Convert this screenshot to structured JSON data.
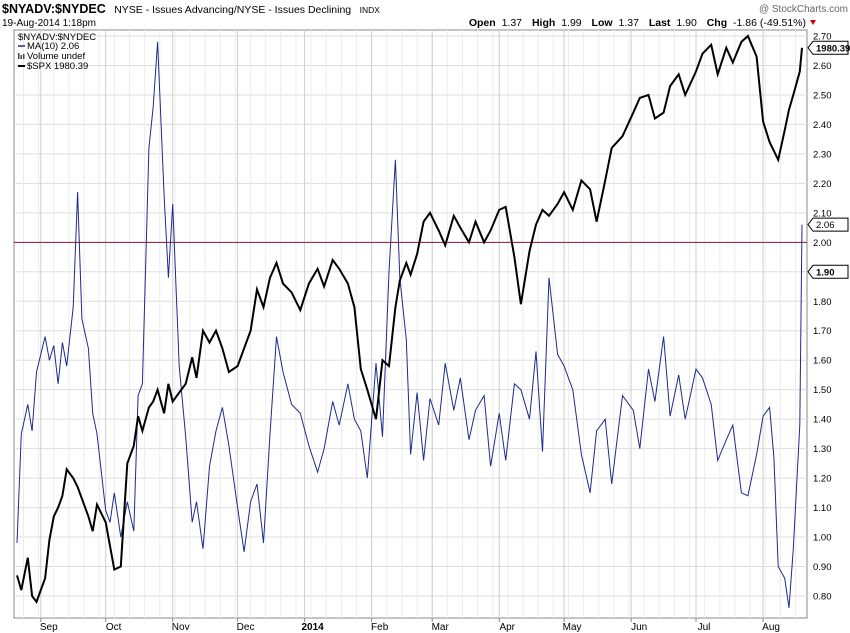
{
  "header": {
    "symbol": "$NYADV:$NYDEC",
    "exchange": "NYSE - Issues Advancing/NYSE - Issues Declining",
    "index_tag": "INDX",
    "watermark": "@ StockCharts.com",
    "timestamp": "19-Aug-2014 1:18pm",
    "quote": {
      "open_label": "Open",
      "open": "1.37",
      "high_label": "High",
      "high": "1.99",
      "low_label": "Low",
      "low": "1.37",
      "last_label": "Last",
      "last": "1.90",
      "chg_label": "Chg",
      "chg": "-1.86 (-49.51%)"
    }
  },
  "legend": {
    "ratio": "$NYADV:$NYDEC",
    "ma": "MA(10) 2.06",
    "volume": "Volume undef",
    "spx": "$SPX 1980.39"
  },
  "tags": {
    "spx_last": "1980.39",
    "ma_last": "2.06",
    "ratio_last": "1.90"
  },
  "colors": {
    "ma_line": "#1f2a8c",
    "spx_line": "#000000",
    "reference_line": "#8b1a3a",
    "grid": "#dddddd",
    "chg_down": "#cc0000"
  },
  "chart_data": {
    "type": "line",
    "title": "$NYADV:$NYDEC",
    "subtitle": "NYSE - Issues Advancing/NYSE - Issues Declining",
    "x_tick_labels": [
      "Sep",
      "Oct",
      "Nov",
      "Dec",
      "2014",
      "Feb",
      "Mar",
      "Apr",
      "May",
      "Jun",
      "Jul",
      "Aug"
    ],
    "y_tick_labels": [
      "0.80",
      "0.90",
      "1.00",
      "1.10",
      "1.20",
      "1.30",
      "1.40",
      "1.50",
      "1.60",
      "1.70",
      "1.80",
      "1.90",
      "2.00",
      "2.10",
      "2.20",
      "2.30",
      "2.40",
      "2.50",
      "2.60",
      "2.70"
    ],
    "ylim": [
      0.75,
      2.72
    ],
    "reference_line": 2.0,
    "grid": true,
    "legend_position": "top-left",
    "x_range": [
      "2013-08-21",
      "2014-08-19"
    ],
    "series": [
      {
        "name": "MA(10)",
        "color": "#1f2a8c",
        "x": [
          "2013-08-21",
          "2013-08-23",
          "2013-08-26",
          "2013-08-28",
          "2013-08-30",
          "2013-09-03",
          "2013-09-05",
          "2013-09-07",
          "2013-09-09",
          "2013-09-11",
          "2013-09-13",
          "2013-09-16",
          "2013-09-18",
          "2013-09-20",
          "2013-09-23",
          "2013-09-25",
          "2013-09-27",
          "2013-10-01",
          "2013-10-03",
          "2013-10-05",
          "2013-10-08",
          "2013-10-11",
          "2013-10-14",
          "2013-10-16",
          "2013-10-18",
          "2013-10-21",
          "2013-10-23",
          "2013-10-25",
          "2013-10-28",
          "2013-10-30",
          "2013-11-01",
          "2013-11-04",
          "2013-11-07",
          "2013-11-10",
          "2013-11-12",
          "2013-11-15",
          "2013-11-18",
          "2013-11-21",
          "2013-11-24",
          "2013-11-27",
          "2013-12-01",
          "2013-12-04",
          "2013-12-07",
          "2013-12-10",
          "2013-12-13",
          "2013-12-16",
          "2013-12-19",
          "2013-12-22",
          "2013-12-26",
          "2013-12-30",
          "2014-01-03",
          "2014-01-07",
          "2014-01-10",
          "2014-01-14",
          "2014-01-17",
          "2014-01-21",
          "2014-01-24",
          "2014-01-27",
          "2014-01-30",
          "2014-02-03",
          "2014-02-06",
          "2014-02-09",
          "2014-02-12",
          "2014-02-14",
          "2014-02-17",
          "2014-02-19",
          "2014-02-22",
          "2014-02-25",
          "2014-02-28",
          "2014-03-04",
          "2014-03-07",
          "2014-03-11",
          "2014-03-14",
          "2014-03-18",
          "2014-03-21",
          "2014-03-25",
          "2014-03-28",
          "2014-04-01",
          "2014-04-04",
          "2014-04-08",
          "2014-04-11",
          "2014-04-15",
          "2014-04-18",
          "2014-04-21",
          "2014-04-24",
          "2014-04-28",
          "2014-05-01",
          "2014-05-05",
          "2014-05-09",
          "2014-05-13",
          "2014-05-16",
          "2014-05-20",
          "2014-05-23",
          "2014-05-28",
          "2014-06-02",
          "2014-06-05",
          "2014-06-09",
          "2014-06-12",
          "2014-06-16",
          "2014-06-19",
          "2014-06-23",
          "2014-06-26",
          "2014-07-01",
          "2014-07-04",
          "2014-07-08",
          "2014-07-11",
          "2014-07-15",
          "2014-07-18",
          "2014-07-22",
          "2014-07-25",
          "2014-07-29",
          "2014-08-01",
          "2014-08-04",
          "2014-08-06",
          "2014-08-08",
          "2014-08-11",
          "2014-08-13",
          "2014-08-15",
          "2014-08-18",
          "2014-08-19"
        ],
        "values": [
          0.98,
          1.35,
          1.45,
          1.36,
          1.56,
          1.68,
          1.6,
          1.65,
          1.52,
          1.66,
          1.58,
          1.78,
          2.17,
          1.74,
          1.64,
          1.42,
          1.35,
          1.09,
          1.05,
          1.15,
          1.0,
          1.12,
          1.02,
          1.48,
          1.52,
          2.32,
          2.46,
          2.68,
          2.16,
          1.88,
          2.13,
          1.58,
          1.34,
          1.05,
          1.12,
          0.96,
          1.24,
          1.36,
          1.44,
          1.31,
          1.1,
          0.95,
          1.12,
          1.18,
          0.98,
          1.35,
          1.68,
          1.56,
          1.45,
          1.42,
          1.31,
          1.22,
          1.3,
          1.46,
          1.38,
          1.52,
          1.4,
          1.36,
          1.2,
          1.59,
          1.34,
          1.9,
          2.28,
          1.88,
          1.67,
          1.28,
          1.49,
          1.26,
          1.47,
          1.38,
          1.59,
          1.43,
          1.54,
          1.33,
          1.43,
          1.48,
          1.24,
          1.42,
          1.26,
          1.52,
          1.5,
          1.4,
          1.63,
          1.29,
          1.88,
          1.62,
          1.58,
          1.5,
          1.28,
          1.15,
          1.36,
          1.4,
          1.18,
          1.48,
          1.43,
          1.3,
          1.57,
          1.46,
          1.68,
          1.41,
          1.55,
          1.4,
          1.57,
          1.54,
          1.45,
          1.26,
          1.33,
          1.38,
          1.15,
          1.14,
          1.28,
          1.41,
          1.44,
          1.27,
          0.9,
          0.86,
          0.76,
          0.96,
          1.38,
          2.06
        ]
      },
      {
        "name": "$SPX",
        "color": "#000000",
        "x": [
          "2013-08-21",
          "2013-08-23",
          "2013-08-26",
          "2013-08-28",
          "2013-08-30",
          "2013-09-03",
          "2013-09-05",
          "2013-09-07",
          "2013-09-09",
          "2013-09-11",
          "2013-09-13",
          "2013-09-16",
          "2013-09-18",
          "2013-09-20",
          "2013-09-23",
          "2013-09-25",
          "2013-09-27",
          "2013-10-01",
          "2013-10-03",
          "2013-10-05",
          "2013-10-08",
          "2013-10-11",
          "2013-10-14",
          "2013-10-16",
          "2013-10-18",
          "2013-10-21",
          "2013-10-23",
          "2013-10-25",
          "2013-10-28",
          "2013-10-30",
          "2013-11-01",
          "2013-11-04",
          "2013-11-07",
          "2013-11-10",
          "2013-11-12",
          "2013-11-15",
          "2013-11-18",
          "2013-11-21",
          "2013-11-24",
          "2013-11-27",
          "2013-12-01",
          "2013-12-04",
          "2013-12-07",
          "2013-12-10",
          "2013-12-13",
          "2013-12-16",
          "2013-12-19",
          "2013-12-22",
          "2013-12-26",
          "2013-12-30",
          "2014-01-03",
          "2014-01-07",
          "2014-01-10",
          "2014-01-14",
          "2014-01-17",
          "2014-01-21",
          "2014-01-24",
          "2014-01-27",
          "2014-01-30",
          "2014-02-03",
          "2014-02-06",
          "2014-02-09",
          "2014-02-12",
          "2014-02-14",
          "2014-02-17",
          "2014-02-19",
          "2014-02-22",
          "2014-02-25",
          "2014-02-28",
          "2014-03-04",
          "2014-03-07",
          "2014-03-11",
          "2014-03-14",
          "2014-03-18",
          "2014-03-21",
          "2014-03-25",
          "2014-03-28",
          "2014-04-01",
          "2014-04-04",
          "2014-04-08",
          "2014-04-11",
          "2014-04-15",
          "2014-04-18",
          "2014-04-21",
          "2014-04-24",
          "2014-04-28",
          "2014-05-01",
          "2014-05-05",
          "2014-05-09",
          "2014-05-13",
          "2014-05-16",
          "2014-05-20",
          "2014-05-23",
          "2014-05-28",
          "2014-06-02",
          "2014-06-05",
          "2014-06-09",
          "2014-06-12",
          "2014-06-16",
          "2014-06-19",
          "2014-06-23",
          "2014-06-26",
          "2014-07-01",
          "2014-07-04",
          "2014-07-08",
          "2014-07-11",
          "2014-07-15",
          "2014-07-18",
          "2014-07-22",
          "2014-07-25",
          "2014-07-29",
          "2014-08-01",
          "2014-08-04",
          "2014-08-06",
          "2014-08-08",
          "2014-08-11",
          "2014-08-13",
          "2014-08-15",
          "2014-08-18",
          "2014-08-19"
        ],
        "values": [
          0.87,
          0.82,
          0.93,
          0.8,
          0.78,
          0.86,
          0.99,
          1.07,
          1.1,
          1.14,
          1.23,
          1.2,
          1.17,
          1.13,
          1.07,
          1.02,
          1.11,
          1.05,
          0.97,
          0.89,
          0.9,
          1.25,
          1.31,
          1.41,
          1.36,
          1.44,
          1.46,
          1.5,
          1.42,
          1.52,
          1.46,
          1.49,
          1.52,
          1.61,
          1.54,
          1.7,
          1.66,
          1.7,
          1.64,
          1.56,
          1.58,
          1.64,
          1.7,
          1.84,
          1.78,
          1.88,
          1.93,
          1.86,
          1.83,
          1.77,
          1.86,
          1.91,
          1.85,
          1.94,
          1.91,
          1.86,
          1.78,
          1.57,
          1.5,
          1.4,
          1.6,
          1.58,
          1.78,
          1.87,
          1.93,
          1.89,
          1.96,
          2.07,
          2.1,
          2.04,
          1.99,
          2.09,
          2.05,
          2.0,
          2.07,
          2.0,
          2.04,
          2.11,
          2.12,
          1.95,
          1.79,
          1.97,
          2.06,
          2.11,
          2.09,
          2.13,
          2.17,
          2.11,
          2.21,
          2.18,
          2.07,
          2.21,
          2.32,
          2.36,
          2.44,
          2.49,
          2.5,
          2.42,
          2.44,
          2.53,
          2.57,
          2.5,
          2.58,
          2.64,
          2.67,
          2.57,
          2.66,
          2.61,
          2.68,
          2.7,
          2.63,
          2.41,
          2.34,
          2.31,
          2.28,
          2.38,
          2.45,
          2.5,
          2.58,
          2.66
        ]
      }
    ]
  }
}
